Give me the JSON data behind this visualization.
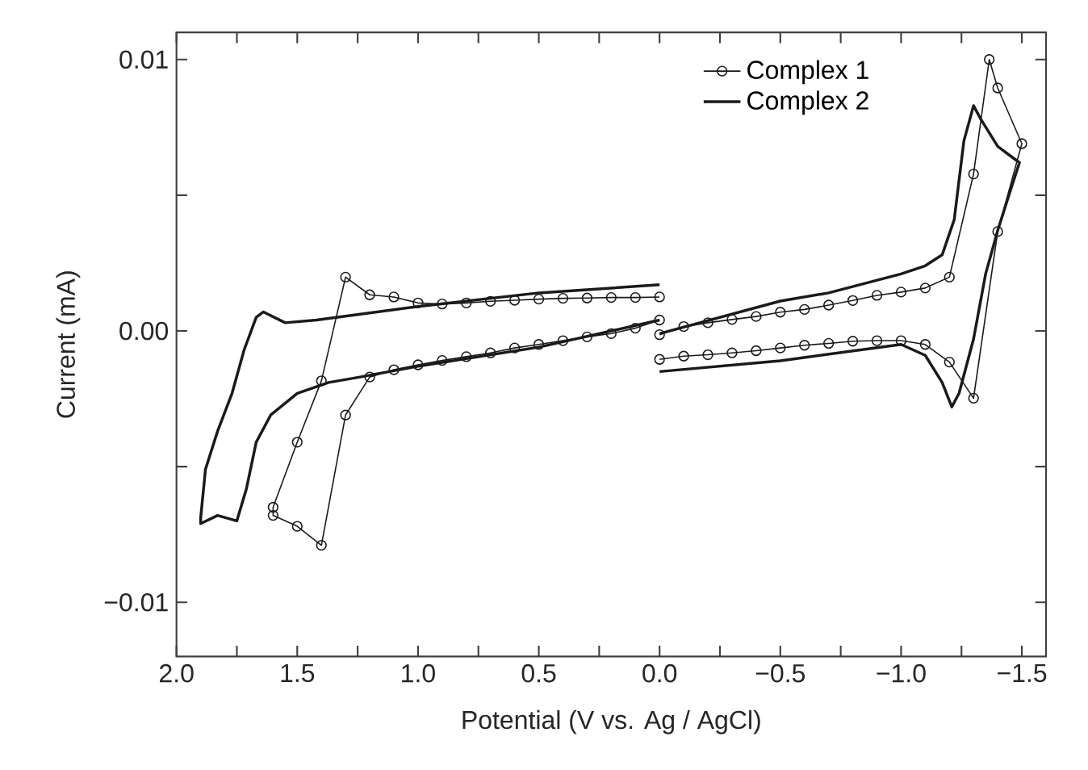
{
  "chart_data": {
    "type": "line",
    "xlabel": "Potential (V vs. Ag / AgCl)",
    "ylabel": "Current (mA)",
    "xlim": [
      2.0,
      -1.6
    ],
    "ylim": [
      -0.012,
      0.011
    ],
    "xticks": [
      {
        "value": 2.0,
        "label": "2.0"
      },
      {
        "value": 1.75,
        "label": null
      },
      {
        "value": 1.5,
        "label": "1.5"
      },
      {
        "value": 1.25,
        "label": null
      },
      {
        "value": 1.0,
        "label": "1.0"
      },
      {
        "value": 0.75,
        "label": null
      },
      {
        "value": 0.5,
        "label": "0.5"
      },
      {
        "value": 0.25,
        "label": null
      },
      {
        "value": 0.0,
        "label": "0.0"
      },
      {
        "value": -0.25,
        "label": null
      },
      {
        "value": -0.5,
        "label": "−0.5"
      },
      {
        "value": -0.75,
        "label": null
      },
      {
        "value": -1.0,
        "label": "−1.0"
      },
      {
        "value": -1.25,
        "label": null
      },
      {
        "value": -1.5,
        "label": "−1.5"
      }
    ],
    "yticks": [
      {
        "value": -0.01,
        "label": "−0.01"
      },
      {
        "value": -0.005,
        "label": null
      },
      {
        "value": 0.0,
        "label": "0.00"
      },
      {
        "value": 0.005,
        "label": null
      },
      {
        "value": 0.01,
        "label": "0.01"
      }
    ],
    "legend": "top right",
    "series": [
      {
        "name": "Complex 1",
        "color": "#1a1a1a",
        "marker": "circle",
        "x": [
          0.0,
          0.1,
          0.2,
          0.3,
          0.4,
          0.5,
          0.6,
          0.7,
          0.8,
          0.9,
          1.0,
          1.1,
          1.2,
          1.3,
          1.4,
          1.5,
          1.6,
          1.6,
          1.5,
          1.4,
          1.3,
          1.2,
          1.1,
          1.0,
          0.9,
          0.8,
          0.7,
          0.6,
          0.5,
          0.4,
          0.3,
          0.2,
          0.1,
          0.0,
          null,
          0.0,
          -0.1,
          -0.2,
          -0.3,
          -0.4,
          -0.5,
          -0.6,
          -0.7,
          -0.8,
          -0.9,
          -1.0,
          -1.1,
          -1.2,
          -1.3,
          -1.365,
          -1.4,
          -1.5,
          -1.4,
          -1.3,
          -1.2,
          -1.1,
          -1.0,
          -0.9,
          -0.8,
          -0.7,
          -0.6,
          -0.5,
          -0.4,
          -0.3,
          -0.2,
          -0.1,
          0.0
        ],
        "values": [
          0.00125,
          0.00123,
          0.00123,
          0.00121,
          0.0012,
          0.00117,
          0.00113,
          0.00109,
          0.00103,
          0.00099,
          0.00103,
          0.00125,
          0.00133,
          0.00198,
          -0.00184,
          -0.0041,
          -0.0065,
          -0.0068,
          -0.0072,
          -0.0079,
          -0.0031,
          -0.0017,
          -0.00143,
          -0.00125,
          -0.00109,
          -0.00095,
          -0.00081,
          -0.00063,
          -0.0005,
          -0.00036,
          -0.00022,
          -0.0001,
          0.0001,
          0.0004,
          null,
          -0.00014,
          0.00016,
          0.0003,
          0.00042,
          0.00053,
          0.00069,
          0.00079,
          0.00095,
          0.00112,
          0.00131,
          0.00143,
          0.00158,
          0.00198,
          0.00578,
          0.01,
          0.00895,
          0.0069,
          0.00366,
          -0.00248,
          -0.00115,
          -0.0005,
          -0.00036,
          -0.00036,
          -0.00038,
          -0.00046,
          -0.00053,
          -0.00063,
          -0.00073,
          -0.00081,
          -0.00088,
          -0.00093,
          -0.00105
        ]
      },
      {
        "name": "Complex 2",
        "color": "#1a1a1a",
        "marker": "none",
        "x": [
          0.0,
          0.5,
          1.0,
          1.42,
          1.55,
          1.64,
          1.67,
          1.72,
          1.77,
          1.83,
          1.88,
          1.9,
          1.9,
          1.83,
          1.75,
          1.71,
          1.67,
          1.61,
          1.5,
          1.37,
          1.24,
          1.0,
          0.5,
          0.0,
          null,
          0.0,
          -0.5,
          -0.7,
          -1.0,
          -1.1,
          -1.17,
          -1.22,
          -1.26,
          -1.3,
          -1.33,
          -1.4,
          -1.49,
          -1.45,
          -1.4,
          -1.35,
          -1.3,
          -1.24,
          -1.21,
          -1.17,
          -1.1,
          -1.0,
          -0.5,
          0.0
        ],
        "values": [
          0.0017,
          0.0014,
          0.0009,
          0.0004,
          0.0003,
          0.0007,
          0.0005,
          -0.0007,
          -0.0023,
          -0.0037,
          -0.0051,
          -0.0069,
          -0.0071,
          -0.0068,
          -0.007,
          -0.0058,
          -0.0041,
          -0.0031,
          -0.0023,
          -0.0019,
          -0.0017,
          -0.0013,
          -0.0006,
          0.0004,
          null,
          -0.0001,
          0.0011,
          0.0014,
          0.0021,
          0.0024,
          0.0028,
          0.0041,
          0.007,
          0.0083,
          0.0078,
          0.0068,
          0.0062,
          0.0051,
          0.0037,
          0.0021,
          -0.0003,
          -0.0023,
          -0.0028,
          -0.0019,
          -0.0009,
          -0.0005,
          -0.0011,
          -0.0015
        ]
      }
    ]
  }
}
